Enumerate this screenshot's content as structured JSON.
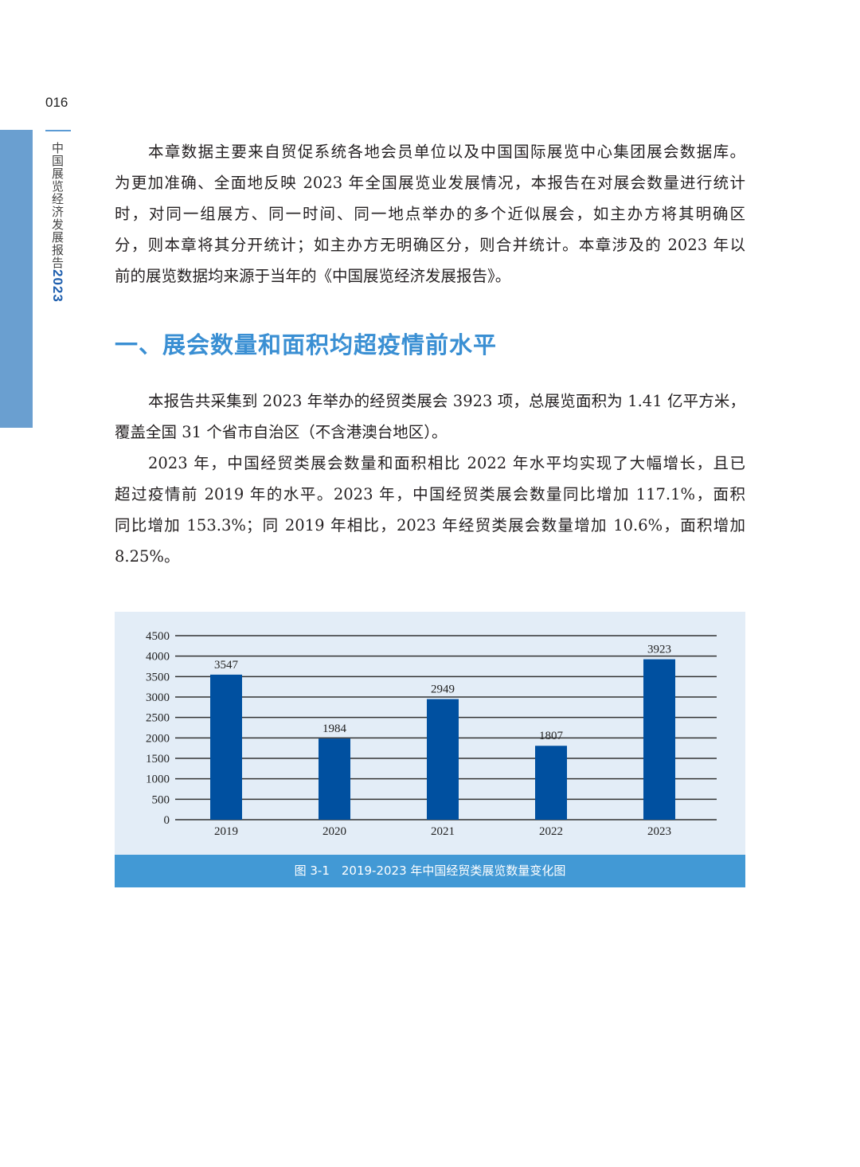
{
  "page_number": "016",
  "running_title": {
    "text": "中国展览经济发展报告",
    "year": "2023"
  },
  "paragraph1": [
    "本章数据主要来自贸促系统各地会员单位以及中国国际展览中心集团展会数据库。",
    "为更加准确、全面地反映 2023 年全国展览业发展情况，本报告在对展会数量进行统计",
    "时，对同一组展方、同一时间、同一地点举办的多个近似展会，如主办方将其明确区",
    "分，则本章将其分开统计；如主办方无明确区分，则合并统计。本章涉及的 2023 年以",
    "前的展览数据均来源于当年的《中国展览经济发展报告》。"
  ],
  "section_heading": "一、展会数量和面积均超疫情前水平",
  "paragraph2": [
    "本报告共采集到 2023 年举办的经贸类展会 3923 项，总展览面积为 1.41 亿平方米，",
    "覆盖全国 31 个省市自治区（不含港澳台地区）。"
  ],
  "paragraph3": [
    "2023 年，中国经贸类展会数量和面积相比 2022 年水平均实现了大幅增长，且已",
    "超过疫情前 2019 年的水平。2023 年，中国经贸类展会数量同比增加 117.1%，面积",
    "同比增加 153.3%；同 2019 年相比，2023 年经贸类展会数量增加 10.6%，面积增加",
    "8.25%。"
  ],
  "chart_data": {
    "type": "bar",
    "categories": [
      "2019",
      "2020",
      "2021",
      "2022",
      "2023"
    ],
    "values": [
      3547,
      1984,
      2949,
      1807,
      3923
    ],
    "data_labels": [
      "3547",
      "1984",
      "2949",
      "1807",
      "3923"
    ],
    "ylim": [
      0,
      4500
    ],
    "yticks": [
      0,
      500,
      1000,
      1500,
      2000,
      2500,
      3000,
      3500,
      4000,
      4500
    ],
    "grid": true,
    "title": "",
    "xlabel": "",
    "ylabel": "",
    "colors": {
      "bar": "#0050a0",
      "background": "#e3edf7",
      "gridline": "#333333"
    }
  },
  "figure_caption": "图 3-1　2019-2023 年中国经贸类展览数量变化图",
  "colors": {
    "accent": "#3a8fd3",
    "sidebar": "#6a9fd0",
    "caption_bg": "#4299d5"
  }
}
